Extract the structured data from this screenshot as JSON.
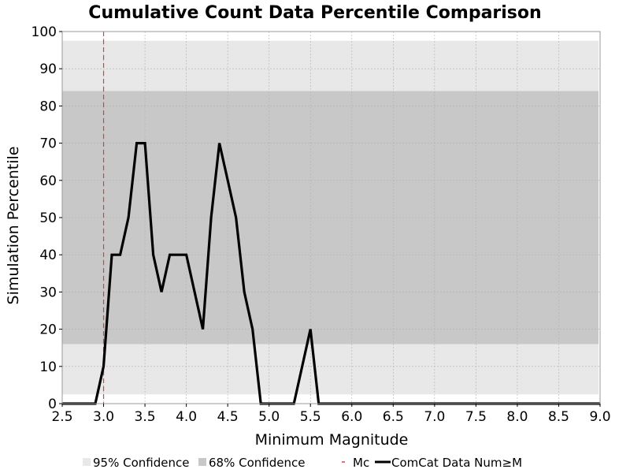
{
  "chart_data": {
    "type": "line",
    "title": "Cumulative Count Data Percentile Comparison",
    "xlabel": "Minimum Magnitude",
    "ylabel": "Simulation Percentile",
    "xlim": [
      2.5,
      9.0
    ],
    "ylim": [
      0,
      100
    ],
    "x_ticks": [
      "2.5",
      "3.0",
      "3.5",
      "4.0",
      "4.5",
      "5.0",
      "5.5",
      "6.0",
      "6.5",
      "7.0",
      "7.5",
      "8.0",
      "8.5",
      "9.0"
    ],
    "y_ticks": [
      "0",
      "10",
      "20",
      "30",
      "40",
      "50",
      "60",
      "70",
      "80",
      "90",
      "100"
    ],
    "grid": true,
    "legend_position": "bottom",
    "bands": [
      {
        "name": "95% Confidence",
        "range": [
          2.5,
          97.5
        ],
        "color": "#e8e8e8"
      },
      {
        "name": "68% Confidence",
        "range": [
          16,
          84
        ],
        "color": "#c8c8c8"
      }
    ],
    "mc": {
      "name": "Mc",
      "x": 3.0,
      "color": "#e8383d"
    },
    "series": [
      {
        "name": "ComCat Data Num≥M",
        "color": "#000000",
        "x": [
          2.5,
          2.9,
          3.0,
          3.1,
          3.2,
          3.3,
          3.4,
          3.5,
          3.6,
          3.7,
          3.8,
          3.9,
          4.0,
          4.1,
          4.2,
          4.3,
          4.4,
          4.5,
          4.6,
          4.7,
          4.8,
          4.9,
          5.0,
          5.1,
          5.2,
          5.3,
          5.4,
          5.5,
          5.6,
          9.0
        ],
        "y": [
          0,
          0,
          10,
          40,
          40,
          50,
          70,
          70,
          40,
          30,
          40,
          40,
          40,
          30,
          20,
          50,
          70,
          60,
          50,
          30,
          20,
          0,
          0,
          0,
          0,
          0,
          10,
          20,
          0,
          0
        ]
      }
    ]
  }
}
